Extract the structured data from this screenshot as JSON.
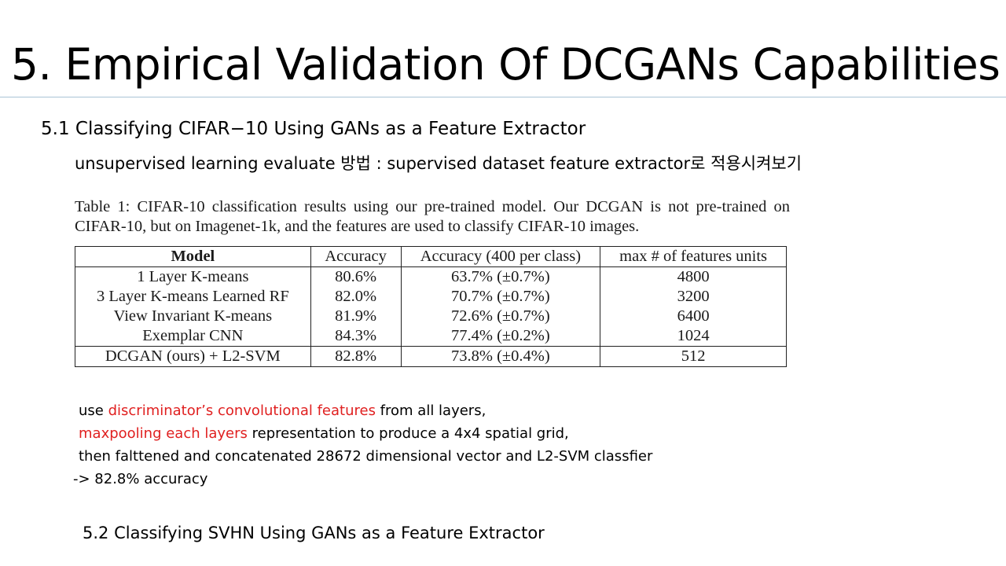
{
  "slide": {
    "title": "5. Empirical Validation Of DCGANs Capabilities",
    "section_heading": "5.1 Classifying CIFAR−10 Using GANs as a Feature Extractor",
    "subtitle": "unsupervised learning evaluate 방법  : supervised dataset feature extractor로 적용시켜보기",
    "table_caption": "Table 1:  CIFAR-10 classification results using our pre-trained model.  Our DCGAN is not pre-trained on CIFAR-10, but on Imagenet-1k, and the features are used to classify CIFAR-10 images.",
    "table": {
      "headers": [
        "Model",
        "Accuracy",
        "Accuracy (400 per class)",
        "max # of features units"
      ],
      "rows": [
        [
          "1 Layer K-means",
          "80.6%",
          "63.7% (±0.7%)",
          "4800"
        ],
        [
          "3 Layer K-means Learned RF",
          "82.0%",
          "70.7% (±0.7%)",
          "3200"
        ],
        [
          "View Invariant K-means",
          "81.9%",
          "72.6% (±0.7%)",
          "6400"
        ],
        [
          "Exemplar CNN",
          "84.3%",
          "77.4% (±0.2%)",
          "1024"
        ],
        [
          "DCGAN (ours) + L2-SVM",
          "82.8%",
          "73.8% (±0.4%)",
          "512"
        ]
      ]
    },
    "notes": {
      "line1_a": "use ",
      "line1_red": "discriminator’s convolutional features",
      "line1_b": " from all layers,",
      "line2_red": "maxpooling each layers",
      "line2_b": " representation to produce a 4x4 spatial grid,",
      "line3": "then falttened and concatenated 28672 dimensional vector and L2-SVM classfier",
      "line4": "-> 82.8% accuracy"
    },
    "next_section_heading": "5.2 Classifying SVHN Using GANs as a Feature Extractor"
  },
  "colors": {
    "highlight_red": "#e02020",
    "title_rule": "#a9c4d6"
  }
}
